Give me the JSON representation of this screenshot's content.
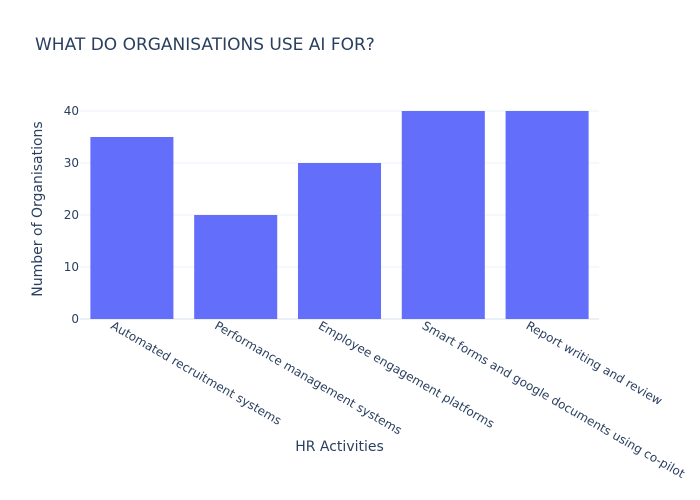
{
  "chart_data": {
    "type": "bar",
    "title": "WHAT DO ORGANISATIONS USE AI FOR?",
    "xlabel": "HR Activities",
    "ylabel": "Number of Organisations",
    "categories": [
      "Automated recruitment systems",
      "Performance management systems",
      "Employee engagement platforms",
      "Smart forms and google documents using co-pilot",
      "Report writing and review"
    ],
    "values": [
      35,
      20,
      30,
      40,
      40
    ],
    "yticks": [
      0,
      10,
      20,
      30,
      40
    ],
    "ylim": [
      0,
      40
    ],
    "grid": true,
    "bar_color": "#636efa"
  }
}
